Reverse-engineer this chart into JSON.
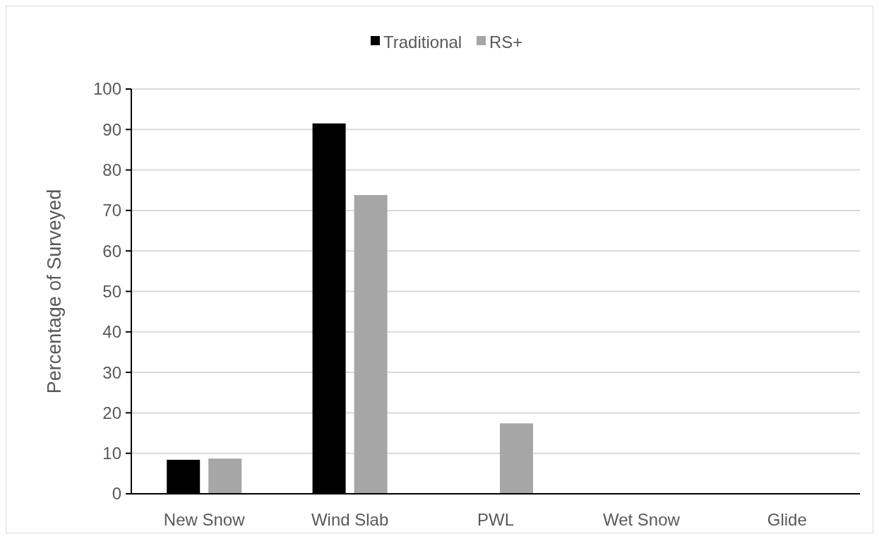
{
  "chart_data": {
    "type": "bar",
    "ylabel": "Percentage of Surveyed",
    "categories": [
      "New Snow",
      "Wind Slab",
      "PWL",
      "Wet Snow",
      "Glide"
    ],
    "series": [
      {
        "name": "Traditional",
        "color": "#000000",
        "values": [
          8.4,
          91.5,
          0,
          0,
          0
        ]
      },
      {
        "name": "RS+",
        "color": "#a6a6a6",
        "values": [
          8.7,
          73.8,
          17.4,
          0,
          0
        ]
      }
    ],
    "ylim": [
      0,
      100
    ],
    "yticks": [
      0,
      10,
      20,
      30,
      40,
      50,
      60,
      70,
      80,
      90,
      100
    ],
    "grid": "y",
    "legend": "top"
  }
}
